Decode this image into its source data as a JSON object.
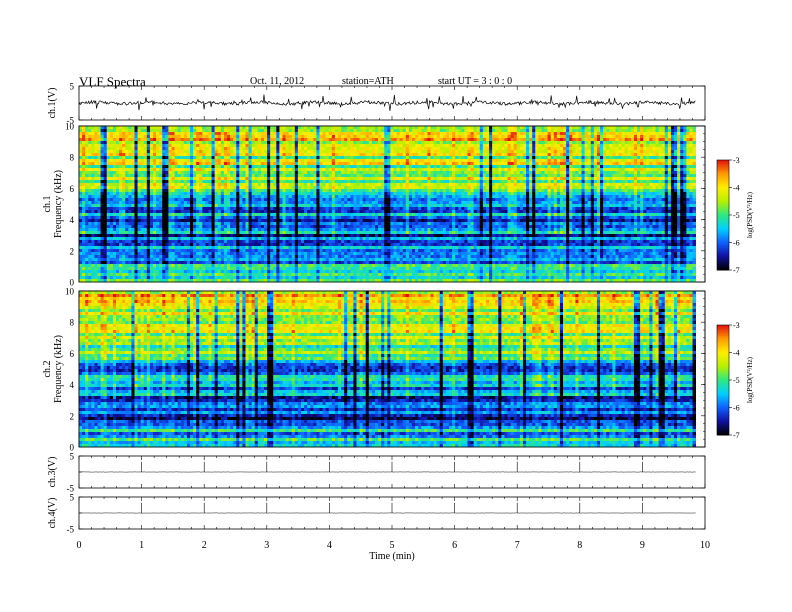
{
  "header": {
    "title": "VLF  Spectra",
    "date": "Oct. 11, 2012",
    "station": "station=ATH",
    "start": "start  UT  =   3  : 0  : 0"
  },
  "chart_data": [
    {
      "type": "line",
      "ylabel": "ch.1(V)",
      "yticks": [
        "5",
        "-5"
      ],
      "ylim": [
        -5,
        5
      ],
      "baseline": 0,
      "noise": "high"
    },
    {
      "type": "heatmap",
      "ylabel": "Frequency  (kHz)",
      "channel_label": "ch.1",
      "yticks": [
        "0",
        "2",
        "4",
        "6",
        "8",
        "10"
      ],
      "ylim": [
        0,
        10
      ],
      "colorbar": {
        "label": "log(PSD(V²/Hz)",
        "ticks": [
          "-3",
          "-4",
          "-5",
          "-6",
          "-7"
        ],
        "range": [
          -7,
          -3
        ]
      }
    },
    {
      "type": "heatmap",
      "ylabel": "Frequency  (kHz)",
      "channel_label": "ch.2",
      "yticks": [
        "0",
        "2",
        "4",
        "6",
        "8",
        "10"
      ],
      "ylim": [
        0,
        10
      ],
      "colorbar": {
        "label": "log(PSD(V²/Hz)",
        "ticks": [
          "-3",
          "-4",
          "-5",
          "-6",
          "-7"
        ],
        "range": [
          -7,
          -3
        ]
      }
    },
    {
      "type": "line",
      "ylabel": "ch.3(V)",
      "yticks": [
        "5",
        "-5"
      ],
      "ylim": [
        -5,
        5
      ],
      "baseline": 0,
      "noise": "low"
    },
    {
      "type": "line",
      "ylabel": "ch.4(V)",
      "yticks": [
        "5",
        "-5"
      ],
      "ylim": [
        -5,
        5
      ],
      "baseline": 0,
      "noise": "low"
    }
  ],
  "xaxis": {
    "label": "Time  (min)",
    "ticks": [
      "0",
      "1",
      "2",
      "3",
      "4",
      "5",
      "6",
      "7",
      "8",
      "9",
      "10"
    ],
    "xlim": [
      0,
      10
    ],
    "data_end": 9.85
  },
  "colors": {
    "colormap": [
      "#000000",
      "#1010a0",
      "#1060ff",
      "#00d0ff",
      "#30e880",
      "#b8f000",
      "#ffee00",
      "#ff9900",
      "#e01010",
      "#ffffff"
    ]
  }
}
